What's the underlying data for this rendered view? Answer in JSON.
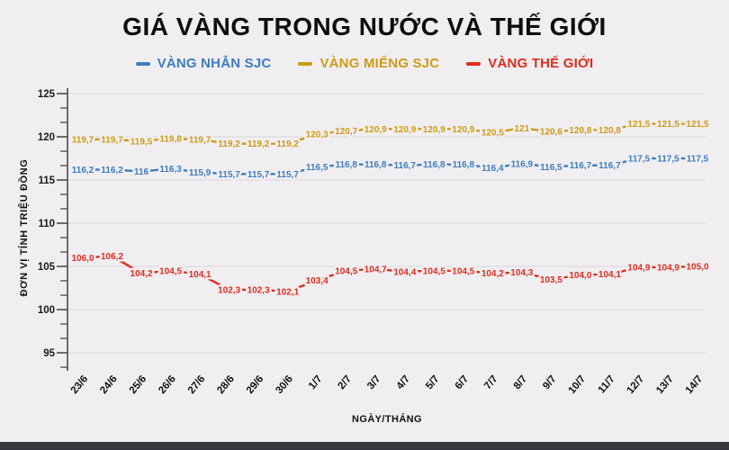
{
  "page": {
    "background": "#f0eef1",
    "bottom_bar_color": "#39353f",
    "gridline_color": "#d9d7db",
    "axis_color": "#4a4a4a"
  },
  "chart": {
    "title": "GIÁ VÀNG TRONG NƯỚC VÀ THẾ GIỚI",
    "xlabel": "NGÀY/THÁNG",
    "ylabel": "ĐƠN VỊ TÍNH TRIỆU ĐỒNG"
  },
  "chart_data": {
    "type": "line",
    "title": "GIÁ VÀNG TRONG NƯỚC VÀ THẾ GIỚI",
    "xlabel": "NGÀY/THÁNG",
    "ylabel": "ĐƠN VỊ TÍNH TRIỆU ĐỒNG",
    "legend_position": "top",
    "grid": true,
    "ylim": [
      95,
      125
    ],
    "yticks": [
      95,
      100,
      105,
      110,
      115,
      120,
      125
    ],
    "categories": [
      "23/6",
      "24/6",
      "25/6",
      "26/6",
      "27/6",
      "28/6",
      "29/6",
      "30/6",
      "1/7",
      "2/7",
      "3/7",
      "4/7",
      "5/7",
      "6/7",
      "7/7",
      "8/7",
      "9/7",
      "10/7",
      "11/7",
      "12/7",
      "13/7",
      "14/7"
    ],
    "series": [
      {
        "name": "VÀNG NHẪN SJC",
        "color": "#3d7cc0",
        "values": [
          116.2,
          116.2,
          116.0,
          116.3,
          115.9,
          115.7,
          115.7,
          115.7,
          116.5,
          116.8,
          116.8,
          116.7,
          116.8,
          116.8,
          116.4,
          116.9,
          116.5,
          116.7,
          116.7,
          117.5,
          117.5,
          117.5
        ],
        "labels": [
          "116,2",
          "116,2",
          "116",
          "116,3",
          "115,9",
          "115,7",
          "115,7",
          "115,7",
          "116,5",
          "116,8",
          "116,8",
          "116,7",
          "116,8",
          "116,8",
          "116,4",
          "116,9",
          "116,5",
          "116,7",
          "116,7",
          "117,5",
          "117,5",
          "117,5"
        ]
      },
      {
        "name": "VÀNG MIẾNG SJC",
        "color": "#cd9b15",
        "values": [
          119.7,
          119.7,
          119.5,
          119.8,
          119.7,
          119.2,
          119.2,
          119.2,
          120.3,
          120.7,
          120.9,
          120.9,
          120.9,
          120.9,
          120.5,
          121.0,
          120.6,
          120.8,
          120.8,
          121.5,
          121.5,
          121.5
        ],
        "labels": [
          "119,7",
          "119,7",
          "119,5",
          "119,8",
          "119,7",
          "119,2",
          "119,2",
          "119,2",
          "120,3",
          "120,7",
          "120,9",
          "120,9",
          "120,9",
          "120,9",
          "120,5",
          "121",
          "120,6",
          "120,8",
          "120,8",
          "121,5",
          "121,5",
          "121,5"
        ]
      },
      {
        "name": "VÀNG THẾ GIỚI",
        "color": "#e32b1c",
        "values": [
          106.0,
          106.2,
          104.2,
          104.5,
          104.1,
          102.3,
          102.3,
          102.1,
          103.4,
          104.5,
          104.7,
          104.4,
          104.5,
          104.5,
          104.2,
          104.3,
          103.5,
          104.0,
          104.1,
          104.9,
          104.9,
          105.0
        ],
        "labels": [
          "106,0",
          "106,2",
          "104,2",
          "104,5",
          "104,1",
          "102,3",
          "102,3",
          "102,1",
          "103,4",
          "104,5",
          "104,7",
          "104,4",
          "104,5",
          "104,5",
          "104,2",
          "104,3",
          "103,5",
          "104,0",
          "104,1",
          "104,9",
          "104,9",
          "105,0"
        ]
      }
    ]
  }
}
